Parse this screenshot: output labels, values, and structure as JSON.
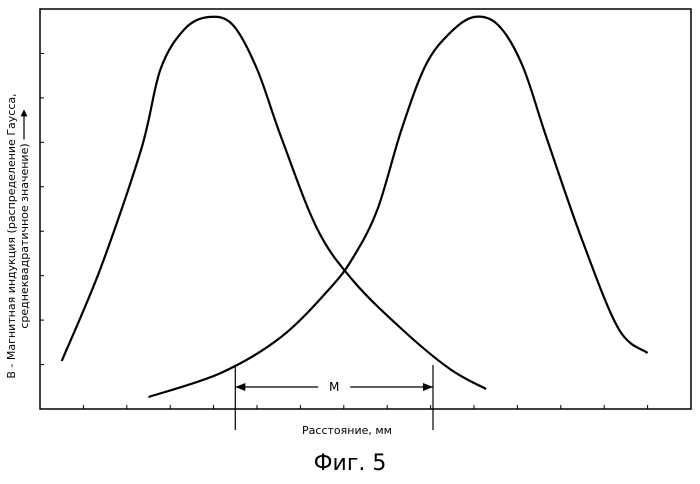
{
  "chart_data": {
    "type": "line",
    "ylabel_line1": "B - Магнитная индукция (распределение Гаусса,",
    "ylabel_line2": "среднеквадратичное значение)",
    "xlabel": "Расстояние, мм",
    "marker_label": "M",
    "figure_caption": "Фиг. 5",
    "grid": false,
    "series": [
      {
        "values": [
          [
            0.9,
            0.12
          ],
          [
            2.5,
            0.35
          ],
          [
            4.2,
            0.65
          ],
          [
            5.0,
            0.85
          ],
          [
            6.0,
            0.95
          ],
          [
            7.0,
            0.98
          ],
          [
            8.0,
            0.96
          ],
          [
            9.0,
            0.85
          ],
          [
            10.0,
            0.68
          ],
          [
            11.5,
            0.45
          ],
          [
            13.0,
            0.32
          ],
          [
            15.0,
            0.2
          ],
          [
            17.0,
            0.1
          ],
          [
            18.5,
            0.05
          ]
        ]
      },
      {
        "values": [
          [
            4.5,
            0.03
          ],
          [
            7.5,
            0.09
          ],
          [
            10.0,
            0.18
          ],
          [
            12.0,
            0.3
          ],
          [
            13.0,
            0.38
          ],
          [
            14.0,
            0.5
          ],
          [
            15.0,
            0.7
          ],
          [
            16.0,
            0.86
          ],
          [
            17.0,
            0.94
          ],
          [
            18.0,
            0.98
          ],
          [
            19.0,
            0.96
          ],
          [
            20.0,
            0.86
          ],
          [
            21.0,
            0.68
          ],
          [
            22.5,
            0.42
          ],
          [
            24.0,
            0.2
          ],
          [
            25.2,
            0.14
          ]
        ]
      }
    ],
    "xlim": [
      0,
      27
    ],
    "ylim": [
      0,
      1.0
    ],
    "marker": {
      "x1": 8.1,
      "x2": 16.3,
      "y": 0.055
    }
  }
}
